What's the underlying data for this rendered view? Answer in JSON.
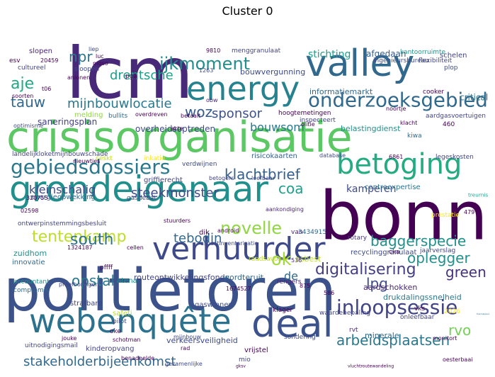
{
  "title": "Cluster 0",
  "words": [
    {
      "text": "crisisorganisatie",
      "color": "#5cc863"
    },
    {
      "text": "politietoren",
      "color": "#3b528b"
    },
    {
      "text": "bonn",
      "color": "#440154"
    },
    {
      "text": "lcm",
      "color": "#482878"
    },
    {
      "text": "grondeigenaar",
      "color": "#21908d"
    },
    {
      "text": "valley",
      "color": "#31688e"
    },
    {
      "text": "webenquête",
      "color": "#2c728e"
    },
    {
      "text": "deal",
      "color": "#3b528b"
    },
    {
      "text": "verhuurder",
      "color": "#3e4a89"
    },
    {
      "text": "energy",
      "color": "#26828e"
    },
    {
      "text": "betoging",
      "color": "#25ab82"
    },
    {
      "text": "gebiedsdossiers",
      "color": "#2a788e"
    },
    {
      "text": "onderzoeksgebied",
      "color": "#31688e"
    },
    {
      "text": "ijkmoment",
      "color": "#228d8d"
    },
    {
      "text": "inloopsessie",
      "color": "#414487"
    },
    {
      "text": "tentenkamp",
      "color": "#bddf26"
    },
    {
      "text": "novelle",
      "color": "#90d743"
    },
    {
      "text": "digitalisering",
      "color": "#433e85"
    },
    {
      "text": "stakeholderbijeenkomst",
      "color": "#31688e"
    },
    {
      "text": "arbeidsplaatsen",
      "color": "#2a788e"
    },
    {
      "text": "baggerspecie",
      "color": "#21918c"
    },
    {
      "text": "klachtbrief",
      "color": "#355f8d"
    },
    {
      "text": "steekmonster",
      "color": "#3e4a89"
    },
    {
      "text": "sponsor",
      "color": "#3b528b"
    },
    {
      "text": "mijnbouwlocatie",
      "color": "#2a788e"
    },
    {
      "text": "drentsche",
      "color": "#1f9e89"
    },
    {
      "text": "south",
      "color": "#2c728e"
    },
    {
      "text": "tebodin",
      "color": "#31688e"
    },
    {
      "text": "green",
      "color": "#46337e"
    },
    {
      "text": "oplegger",
      "color": "#21918c"
    },
    {
      "text": "kleinschalig",
      "color": "#3e4a89"
    },
    {
      "text": "opstal",
      "color": "#2a788e"
    },
    {
      "text": "tauw",
      "color": "#31688e"
    },
    {
      "text": "aje",
      "color": "#22a884"
    },
    {
      "text": "npr",
      "color": "#2c728e"
    },
    {
      "text": "woz",
      "color": "#365c8d"
    },
    {
      "text": "coa",
      "color": "#1f9e89"
    },
    {
      "text": "ok",
      "color": "#a0da39"
    },
    {
      "text": "lpg",
      "color": "#3e4a89"
    },
    {
      "text": "rvo",
      "color": "#73d056"
    },
    {
      "text": "de",
      "color": "#31688e"
    },
    {
      "text": "critical",
      "color": "#2c728e"
    },
    {
      "text": "treurnis",
      "color": "#1f9e89"
    },
    {
      "text": "bouwsom",
      "color": "#2a788e"
    },
    {
      "text": "kamperen",
      "color": "#3e4a89"
    },
    {
      "text": "stichting",
      "color": "#1f9e89"
    },
    {
      "text": "afgedaan",
      "color": "#365c8d"
    },
    {
      "text": "schelen",
      "color": "#414487"
    },
    {
      "text": "informatiemarkt",
      "color": "#31688e"
    },
    {
      "text": "bouwvergunning",
      "color": "#3e4a89"
    },
    {
      "text": "saneringsplan",
      "color": "#433e85"
    },
    {
      "text": "overheidsoptreden",
      "color": "#3e4a89"
    },
    {
      "text": "belastingdienst",
      "color": "#21918c"
    },
    {
      "text": "routeontwikkelingsfonds",
      "color": "#414487"
    },
    {
      "text": "wordteruit",
      "color": "#31688e"
    },
    {
      "text": "aardschokken",
      "color": "#482878"
    },
    {
      "text": "drukdalingssnelheid",
      "color": "#2a788e"
    },
    {
      "text": "energieopwekking",
      "color": "#31688e"
    },
    {
      "text": "ontwerpinstemmingsbesluit",
      "color": "#414487"
    },
    {
      "text": "recyclinggranulaat",
      "color": "#3e4a89"
    },
    {
      "text": "landelijkloketmijnbouwschade",
      "color": "#414487"
    },
    {
      "text": "risicokaarten",
      "color": "#355f8d"
    },
    {
      "text": "griffierecht",
      "color": "#414487"
    },
    {
      "text": "contraexpertise",
      "color": "#2c728e"
    },
    {
      "text": "verkeersveiligheid",
      "color": "#3e4a89"
    },
    {
      "text": "kinderopvang",
      "color": "#414487"
    },
    {
      "text": "gaswinnen",
      "color": "#3e4a89"
    },
    {
      "text": "vrijstel",
      "color": "#440154"
    },
    {
      "text": "minerale",
      "color": "#31688e"
    },
    {
      "text": "strafbare",
      "color": "#414487"
    },
    {
      "text": "innovatie",
      "color": "#31688e"
    },
    {
      "text": "asbest",
      "color": "#bddf26"
    },
    {
      "text": "safeti",
      "color": "#b8de29"
    },
    {
      "text": "atena",
      "color": "#21918c"
    },
    {
      "text": "menggranulaat",
      "color": "#414487"
    },
    {
      "text": "ingenieursbureau",
      "color": "#3e4a89"
    },
    {
      "text": "kantoorruimte",
      "color": "#21918c"
    },
    {
      "text": "flexibiliteit",
      "color": "#414487"
    },
    {
      "text": "hoogtemetingen",
      "color": "#440154"
    },
    {
      "text": "aardgasvoertuigen",
      "color": "#414487"
    },
    {
      "text": "sloopen",
      "color": "#3e4a89"
    },
    {
      "text": "slopen",
      "color": "#482878"
    },
    {
      "text": "cultureel",
      "color": "#414487"
    },
    {
      "text": "esv",
      "color": "#440154"
    },
    {
      "text": "verdwijnen",
      "color": "#3e4a89"
    },
    {
      "text": "dik",
      "color": "#440154"
    },
    {
      "text": "van",
      "color": "#482878"
    },
    {
      "text": "gasdebat",
      "color": "#3e4a89"
    },
    {
      "text": "melding",
      "color": "#90d743"
    },
    {
      "text": "bullits",
      "color": "#31688e"
    },
    {
      "text": "inspecteert",
      "color": "#414487"
    },
    {
      "text": "kiwa",
      "color": "#31688e"
    },
    {
      "text": "legeskosten",
      "color": "#414487"
    },
    {
      "text": "prestatie",
      "color": "#fde725"
    },
    {
      "text": "plop",
      "color": "#3e4a89"
    },
    {
      "text": "cooker",
      "color": "#440154"
    },
    {
      "text": "rotary",
      "color": "#46337e"
    },
    {
      "text": "jaarverslag",
      "color": "#414487"
    },
    {
      "text": "cka",
      "color": "#440154"
    },
    {
      "text": "zuidhom",
      "color": "#21918c"
    },
    {
      "text": "pilot",
      "color": "#3e4a89"
    },
    {
      "text": "oke",
      "color": "#440154"
    },
    {
      "text": "klager",
      "color": "#440154"
    },
    {
      "text": "waardebepaling",
      "color": "#414487"
    },
    {
      "text": "sondering",
      "color": "#3e4a89"
    },
    {
      "text": "vks",
      "color": "#440154"
    },
    {
      "text": "rvt",
      "color": "#482878"
    },
    {
      "text": "onleefbaar",
      "color": "#414487"
    },
    {
      "text": "themabijeenkomst",
      "color": "#2c728e"
    },
    {
      "text": "uitnodigingsmail",
      "color": "#414487"
    },
    {
      "text": "benadeelde",
      "color": "#440154"
    },
    {
      "text": "gksv",
      "color": "#440154"
    },
    {
      "text": "mio",
      "color": "#414487"
    },
    {
      "text": "oesterbaai",
      "color": "#440154"
    },
    {
      "text": "vluchtroutewandeling",
      "color": "#440154"
    },
    {
      "text": "2026",
      "color": "#fde725"
    },
    {
      "text": "1674527",
      "color": "#440154"
    },
    {
      "text": "3434915",
      "color": "#31688e"
    },
    {
      "text": "1324187",
      "color": "#440154"
    },
    {
      "text": "proefboringen",
      "color": "#414487"
    },
    {
      "text": "accountant",
      "color": "#21918c"
    },
    {
      "text": "compromis",
      "color": "#31688e"
    },
    {
      "text": "asbestinventarisatie",
      "color": "#3e4a89"
    },
    {
      "text": "aankondiging",
      "color": "#482878"
    },
    {
      "text": "gezamenlijke",
      "color": "#3e4a89"
    },
    {
      "text": "mijnbouw",
      "color": "#3e4a89"
    },
    {
      "text": "cellen",
      "color": "#440154"
    },
    {
      "text": "android",
      "color": "#440154"
    },
    {
      "text": "stuurders",
      "color": "#440154"
    },
    {
      "text": "rengers",
      "color": "#482878"
    },
    {
      "text": "leefbaar",
      "color": "#3e4a89"
    },
    {
      "text": "betogers",
      "color": "#414487"
    },
    {
      "text": "pga",
      "color": "#440154"
    },
    {
      "text": "obw",
      "color": "#482878"
    },
    {
      "text": "akte",
      "color": "#440154"
    },
    {
      "text": "ceskt",
      "color": "#c2df23"
    },
    {
      "text": "inkatie",
      "color": "#fde725"
    },
    {
      "text": "database",
      "color": "#3e4a89"
    },
    {
      "text": "nieuwtjes",
      "color": "#440154"
    },
    {
      "text": "9810",
      "color": "#440154"
    },
    {
      "text": "20459",
      "color": "#440154"
    },
    {
      "text": "1263",
      "color": "#3e4a89"
    },
    {
      "text": "6861",
      "color": "#440154"
    },
    {
      "text": "460",
      "color": "#440154"
    },
    {
      "text": "479",
      "color": "#440154"
    },
    {
      "text": "586",
      "color": "#440154"
    },
    {
      "text": "875",
      "color": "#440154"
    },
    {
      "text": "536",
      "color": "#482878"
    },
    {
      "text": "320755",
      "color": "#440154"
    },
    {
      "text": "02598",
      "color": "#440154"
    },
    {
      "text": "pffff",
      "color": "#440154"
    },
    {
      "text": "overdreven",
      "color": "#440154"
    },
    {
      "text": "optimisme",
      "color": "#3e4a89"
    },
    {
      "text": "soorten",
      "color": "#440154"
    },
    {
      "text": "noortje",
      "color": "#440154"
    },
    {
      "text": "betaalt",
      "color": "#440154"
    },
    {
      "text": "monitort",
      "color": "#440154"
    },
    {
      "text": "schotman",
      "color": "#440154"
    },
    {
      "text": "jouke",
      "color": "#440154"
    },
    {
      "text": "rad",
      "color": "#440154"
    },
    {
      "text": "olitie",
      "color": "#440154"
    },
    {
      "text": "klacht",
      "color": "#440154"
    },
    {
      "text": "raadsavond",
      "color": "#bddf26"
    },
    {
      "text": "luc",
      "color": "#440154"
    },
    {
      "text": "liep",
      "color": "#3e4a89"
    },
    {
      "text": "moso",
      "color": "#440154"
    },
    {
      "text": "anionen",
      "color": "#440154"
    },
    {
      "text": "t06",
      "color": "#440154"
    }
  ]
}
